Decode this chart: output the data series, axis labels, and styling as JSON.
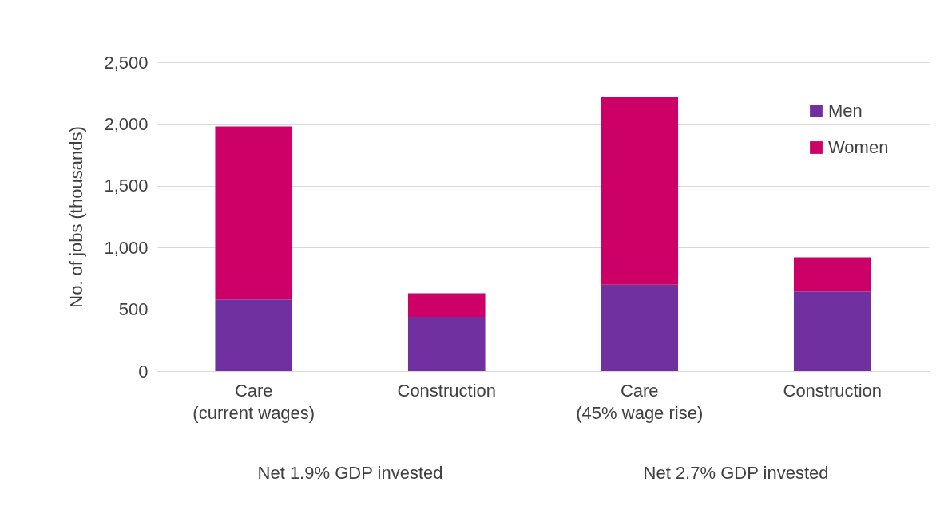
{
  "chart_data": {
    "type": "bar",
    "ylabel": "No. of jobs (thousands)",
    "categories": [
      "Care (current wages)",
      "Construction",
      "Care (45% wage rise)",
      "Construction"
    ],
    "series": [
      {
        "name": "Men",
        "color": "#7030a0",
        "values": [
          580,
          440,
          700,
          645
        ]
      },
      {
        "name": "Women",
        "color": "#cc0066",
        "values": [
          1400,
          190,
          1520,
          275
        ]
      }
    ],
    "stacked": true,
    "ylim": [
      0,
      2500
    ],
    "yticks": [
      0,
      500,
      {
        "value": 1000,
        "label": "1,000"
      },
      {
        "value": 1500,
        "label": "1,500"
      },
      {
        "value": 2000,
        "label": "2,000"
      },
      {
        "value": 2500,
        "label": "2,500"
      }
    ],
    "grid": "y",
    "legend": "top right",
    "annotations": [
      "Net 1.9% GDP invested",
      "Net 2.7% GDP invested"
    ]
  }
}
